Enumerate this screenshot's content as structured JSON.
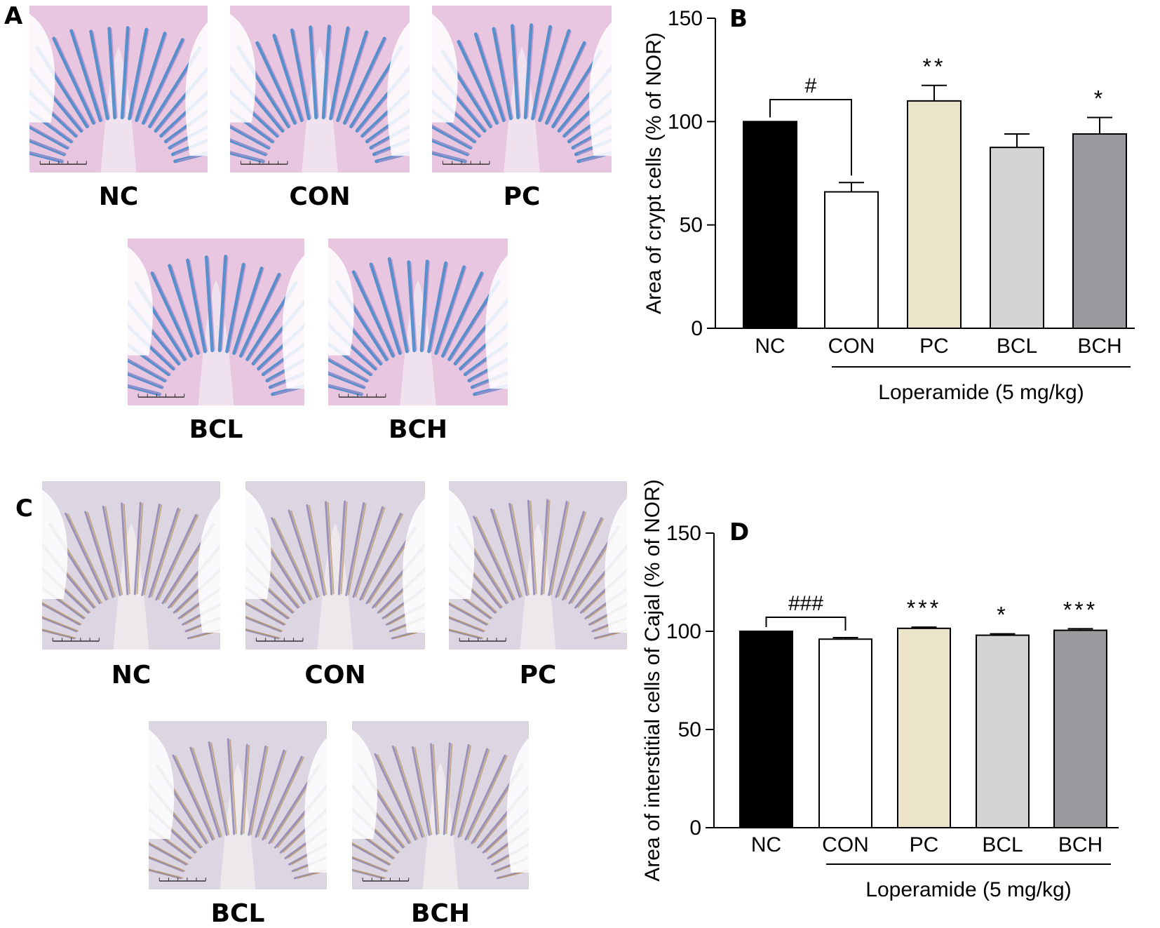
{
  "panels": {
    "A": {
      "letter": "A",
      "stain": "alcian-blue",
      "images": [
        {
          "label": "NC"
        },
        {
          "label": "CON"
        },
        {
          "label": "PC"
        },
        {
          "label": "BCL"
        },
        {
          "label": "BCH"
        }
      ]
    },
    "C": {
      "letter": "C",
      "stain": "c-kit-ihc",
      "images": [
        {
          "label": "NC"
        },
        {
          "label": "CON"
        },
        {
          "label": "PC"
        },
        {
          "label": "BCL"
        },
        {
          "label": "BCH"
        }
      ]
    }
  },
  "colors": {
    "alcian_bg": "#e9c6df",
    "alcian_blue": "#3f86c9",
    "alcian_pink": "#b98fc8",
    "ihc_bg": "#dcd6e2",
    "ihc_purple": "#8e86b4",
    "ihc_brown": "#b9945e"
  },
  "chart_data": [
    {
      "panel": "B",
      "type": "bar",
      "title": "",
      "ylabel": "Area of crypt cells (% of NOR)",
      "xlabel": "Loperamide (5 mg/kg)",
      "ylim": [
        0,
        150
      ],
      "yticks": [
        0,
        50,
        100,
        150
      ],
      "categories": [
        "NC",
        "CON",
        "PC",
        "BCL",
        "BCH"
      ],
      "values": [
        100,
        66,
        110,
        87.5,
        94
      ],
      "errors": [
        0,
        4.5,
        7.5,
        6.5,
        8
      ],
      "colors": [
        "#000000",
        "#ffffff",
        "#ebe4c9",
        "#d4d4d4",
        "#9a9a9e"
      ],
      "significance": [
        "",
        "",
        "**",
        "",
        "*"
      ],
      "comparison": {
        "from": 0,
        "to": 1,
        "label": "#"
      },
      "bracket_span": [
        1,
        4
      ]
    },
    {
      "panel": "D",
      "type": "bar",
      "title": "",
      "ylabel": "Area of interstitial cells of Cajal (% of NOR)",
      "xlabel": "Loperamide (5 mg/kg)",
      "ylim": [
        0,
        150
      ],
      "yticks": [
        0,
        50,
        100,
        150
      ],
      "categories": [
        "NC",
        "CON",
        "PC",
        "BCL",
        "BCH"
      ],
      "values": [
        100,
        96,
        101.5,
        98,
        100.5
      ],
      "errors": [
        0,
        0.8,
        0.6,
        0.7,
        0.8
      ],
      "colors": [
        "#000000",
        "#ffffff",
        "#ebe4c9",
        "#d4d4d4",
        "#9a9a9e"
      ],
      "significance": [
        "",
        "",
        "***",
        "*",
        "***"
      ],
      "comparison": {
        "from": 0,
        "to": 1,
        "label": "###"
      },
      "bracket_span": [
        1,
        4
      ]
    }
  ]
}
